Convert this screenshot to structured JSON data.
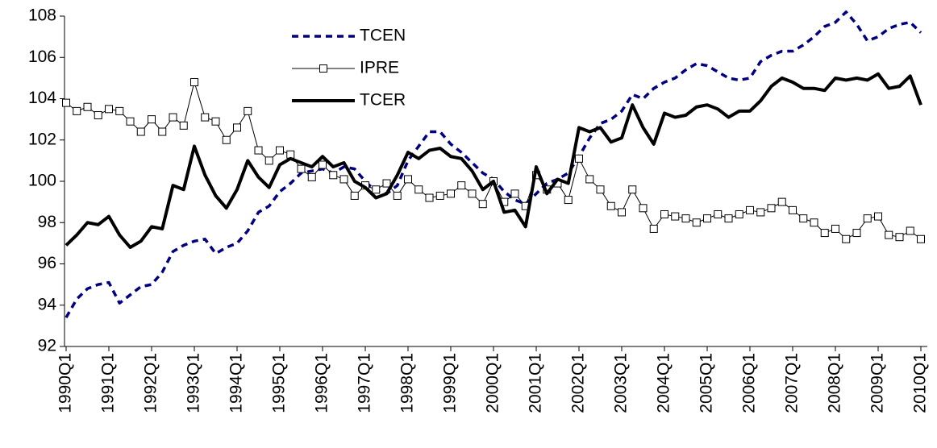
{
  "chart_data": {
    "type": "line",
    "categories": [
      "1990Q1",
      null,
      null,
      null,
      "1991Q1",
      null,
      null,
      null,
      "1992Q1",
      null,
      null,
      null,
      "1993Q1",
      null,
      null,
      null,
      "1994Q1",
      null,
      null,
      null,
      "1995Q1",
      null,
      null,
      null,
      "1996Q1",
      null,
      null,
      null,
      "1997Q1",
      null,
      null,
      null,
      "1998Q1",
      null,
      null,
      null,
      "1999Q1",
      null,
      null,
      null,
      "2000Q1",
      null,
      null,
      null,
      "2001Q1",
      null,
      null,
      null,
      "2002Q1",
      null,
      null,
      null,
      "2003Q1",
      null,
      null,
      null,
      "2004Q1",
      null,
      null,
      null,
      "2005Q1",
      null,
      null,
      null,
      "2006Q1",
      null,
      null,
      null,
      "2007Q1",
      null,
      null,
      null,
      "2008Q1",
      null,
      null,
      null,
      "2009Q1",
      null,
      null,
      null,
      "2010Q1"
    ],
    "series": [
      {
        "name": "TCEN",
        "color": "#000080",
        "line_style": "dashed",
        "line_width": 3.5,
        "marker": "none",
        "values": [
          93.4,
          94.3,
          94.8,
          95.0,
          95.1,
          94.1,
          94.5,
          94.9,
          95.0,
          95.6,
          96.6,
          96.9,
          97.1,
          97.2,
          96.5,
          96.8,
          97.0,
          97.6,
          98.5,
          98.8,
          99.5,
          99.9,
          100.4,
          100.5,
          100.6,
          100.4,
          100.7,
          100.6,
          100.0,
          99.5,
          99.4,
          99.8,
          101.0,
          101.7,
          102.4,
          102.4,
          101.8,
          101.4,
          100.9,
          100.4,
          100.1,
          99.5,
          99.1,
          98.9,
          99.4,
          99.9,
          100.1,
          100.4,
          101.2,
          102.1,
          102.8,
          103.0,
          103.4,
          104.2,
          104.0,
          104.5,
          104.8,
          105.0,
          105.4,
          105.7,
          105.6,
          105.3,
          105.0,
          104.9,
          105.0,
          105.8,
          106.1,
          106.3,
          106.3,
          106.6,
          107.0,
          107.5,
          107.7,
          108.2,
          107.6,
          106.8,
          107.0,
          107.4,
          107.6,
          107.7,
          107.2
        ]
      },
      {
        "name": "IPRE",
        "color": "#000000",
        "line_style": "solid",
        "line_width": 1,
        "marker": "square",
        "values": [
          103.8,
          103.4,
          103.6,
          103.2,
          103.5,
          103.4,
          102.9,
          102.4,
          103.0,
          102.4,
          103.1,
          102.7,
          104.8,
          103.1,
          102.9,
          102.0,
          102.6,
          103.4,
          101.5,
          101.0,
          101.5,
          101.3,
          100.6,
          100.2,
          100.8,
          100.3,
          100.1,
          99.3,
          99.8,
          99.6,
          99.9,
          99.3,
          100.1,
          99.6,
          99.2,
          99.3,
          99.4,
          99.8,
          99.4,
          98.9,
          100.0,
          99.0,
          99.4,
          98.8,
          100.3,
          99.6,
          99.9,
          99.1,
          101.1,
          100.1,
          99.6,
          98.8,
          98.5,
          99.6,
          98.7,
          97.7,
          98.4,
          98.3,
          98.2,
          98.0,
          98.2,
          98.4,
          98.2,
          98.4,
          98.6,
          98.5,
          98.7,
          99.0,
          98.6,
          98.2,
          98.0,
          97.5,
          97.7,
          97.2,
          97.5,
          98.2,
          98.3,
          97.4,
          97.3,
          97.6,
          97.2
        ]
      },
      {
        "name": "TCER",
        "color": "#000000",
        "line_style": "solid",
        "line_width": 4,
        "marker": "none",
        "values": [
          96.9,
          97.4,
          98.0,
          97.9,
          98.3,
          97.4,
          96.8,
          97.1,
          97.8,
          97.7,
          99.8,
          99.6,
          101.7,
          100.3,
          99.3,
          98.7,
          99.6,
          101.0,
          100.2,
          99.7,
          100.8,
          101.1,
          100.9,
          100.7,
          101.2,
          100.7,
          100.9,
          100.0,
          99.7,
          99.2,
          99.4,
          100.3,
          101.4,
          101.1,
          101.5,
          101.6,
          101.2,
          101.1,
          100.5,
          99.6,
          100.0,
          98.5,
          98.6,
          97.8,
          100.7,
          99.4,
          100.1,
          99.9,
          102.6,
          102.4,
          102.6,
          101.9,
          102.1,
          103.7,
          102.6,
          101.8,
          103.3,
          103.1,
          103.2,
          103.6,
          103.7,
          103.5,
          103.1,
          103.4,
          103.4,
          103.9,
          104.6,
          105.0,
          104.8,
          104.5,
          104.5,
          104.4,
          105.0,
          104.9,
          105.0,
          104.9,
          105.2,
          104.5,
          104.6,
          105.1,
          103.7
        ]
      }
    ],
    "ylim": [
      92,
      108
    ],
    "yticks": [
      92,
      94,
      96,
      98,
      100,
      102,
      104,
      106,
      108
    ],
    "grid": false,
    "legend": "upper-center"
  }
}
